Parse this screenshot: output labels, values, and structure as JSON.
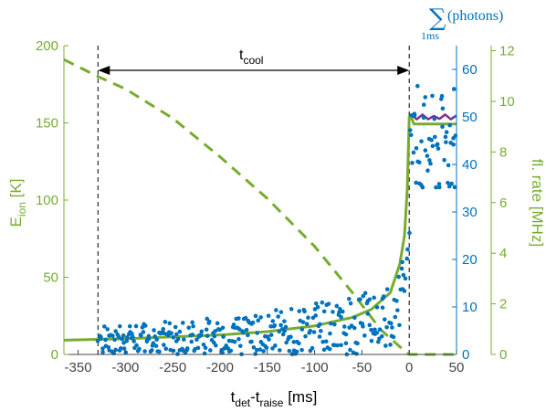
{
  "chart_data": {
    "type": "scatter",
    "xlabel": {
      "main": "t",
      "sub1": "det",
      "mid": "-t",
      "sub2": "raise",
      "tail": " [ms]"
    },
    "ylabel_left": {
      "main": "E",
      "sub": "ion",
      "tail": " [K]"
    },
    "ylabel_right_outer": "fl. rate [MHz]",
    "ylabel_right_inner": {
      "sum": "∑",
      "expr": "(photons)",
      "sub": "1ms"
    },
    "xlim": [
      -365,
      50
    ],
    "ylim_left": [
      0,
      200
    ],
    "ylim_photons": [
      0,
      65
    ],
    "ylim_rate": [
      0,
      12.2
    ],
    "x_ticks": [
      -350,
      -300,
      -250,
      -200,
      -150,
      -100,
      -50,
      0,
      50
    ],
    "y_ticks_left": [
      0,
      50,
      100,
      150,
      200
    ],
    "y_ticks_photons": [
      0,
      10,
      20,
      30,
      40,
      50,
      60
    ],
    "y_ticks_rate": [
      0,
      2,
      4,
      6,
      8,
      10,
      12
    ],
    "annotation": {
      "main": "t",
      "sub": "cool",
      "x_start": -329,
      "x_end": 0
    },
    "vlines": [
      -329,
      0
    ],
    "colors": {
      "green": "#77ac30",
      "blue": "#0072bd",
      "purple": "#7e2f8e",
      "black": "#000000"
    },
    "series": [
      {
        "axis": "left",
        "style": "dashed",
        "x": [
          -365,
          -329,
          -300,
          -250,
          -200,
          -150,
          -100,
          -60,
          -30,
          -10,
          -3,
          0,
          50
        ],
        "values": [
          191,
          180,
          172,
          153,
          128,
          101,
          70,
          40,
          16,
          5,
          1,
          0,
          0
        ]
      },
      {
        "axis": "photons",
        "style": "line",
        "x": [
          -365,
          -300,
          -250,
          -200,
          -150,
          -100,
          -60,
          -40,
          -20,
          -10,
          -5,
          -2,
          0,
          2,
          5,
          50
        ],
        "values": [
          3.0,
          3.3,
          3.7,
          4.1,
          4.8,
          6.0,
          7.8,
          9.5,
          13,
          19,
          25,
          35,
          50,
          50,
          48.5,
          48.5
        ]
      },
      {
        "axis": "photons",
        "style": "line-purple",
        "x": [
          2,
          8,
          14,
          20,
          26,
          32,
          38,
          44,
          50
        ],
        "values": [
          50.5,
          49.5,
          50.5,
          49.5,
          50.2,
          49.6,
          50.5,
          49.5,
          50.3
        ]
      },
      {
        "axis": "photons",
        "style": "points",
        "range": [
          -329,
          0
        ],
        "model": "rising",
        "count": 330
      },
      {
        "axis": "photons",
        "style": "points",
        "range": [
          0,
          50
        ],
        "model": "plateau",
        "count": 55
      }
    ]
  }
}
